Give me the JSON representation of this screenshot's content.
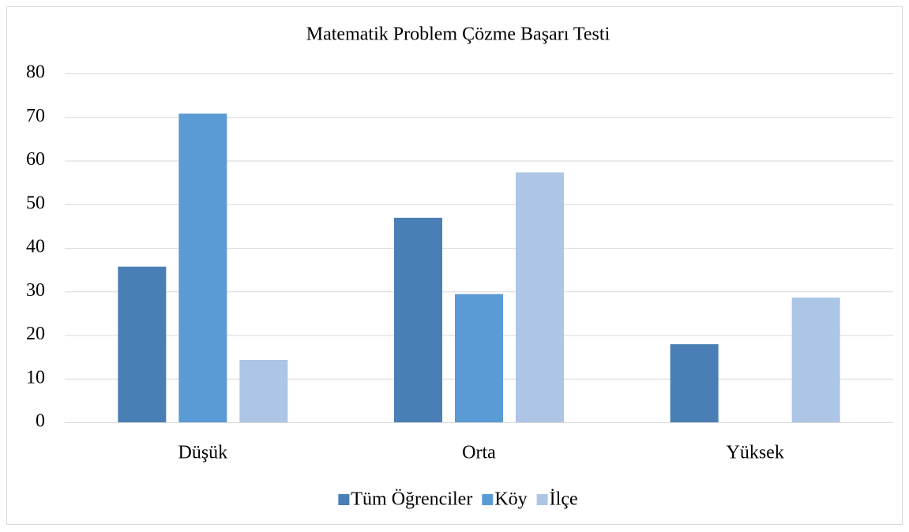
{
  "chart_data": {
    "type": "bar",
    "title": "Matematik Problem Çözme Başarı Testi",
    "categories": [
      "Düşük",
      "Orta",
      "Yüksek"
    ],
    "series": [
      {
        "name": "Tüm Öğrenciler",
        "color": "#4a7fb5",
        "values": [
          35.7,
          46.9,
          17.9
        ]
      },
      {
        "name": "Köy",
        "color": "#5b9bd5",
        "values": [
          70.8,
          29.4,
          0
        ]
      },
      {
        "name": "İlçe",
        "color": "#adc6e5",
        "values": [
          14.3,
          57.3,
          28.6
        ]
      }
    ],
    "ylim": [
      0,
      80
    ],
    "yticks": [
      0,
      10,
      20,
      30,
      40,
      50,
      60,
      70,
      80
    ],
    "grid": true,
    "legend": "bottom"
  }
}
